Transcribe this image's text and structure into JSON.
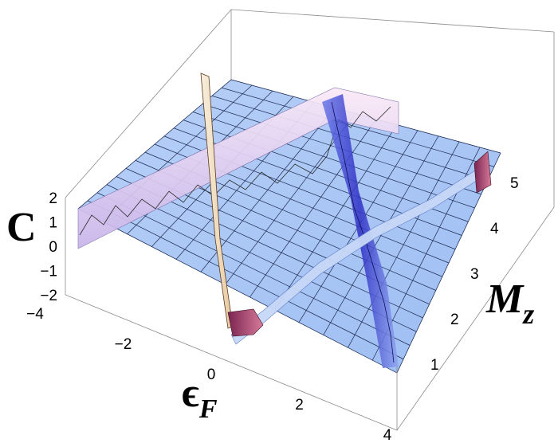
{
  "chart_data": {
    "type": "surface",
    "title": "",
    "xlabel": "ϵ",
    "xlabel_sub": "F",
    "ylabel": "M",
    "ylabel_sub": "z",
    "zlabel": "C",
    "xlim": [
      -4,
      4
    ],
    "ylim": [
      0,
      5
    ],
    "zlim": [
      -2,
      2
    ],
    "x_ticks": [
      "−4",
      "−2",
      "0",
      "2",
      "4"
    ],
    "y_ticks": [
      "1",
      "2",
      "3",
      "4",
      "5"
    ],
    "z_ticks": [
      "2",
      "1",
      "0",
      "−1",
      "−2"
    ],
    "surface": {
      "base_value": 0,
      "features": [
        {
          "name": "ridge",
          "description": "C = +1 plateau along Mz ≈ 4.7 for ϵF from −4 to ≈ 1.5",
          "value": 1
        },
        {
          "name": "valley",
          "description": "C = −1 band along a line from (ϵF ≈ 0, Mz ≈ 0.8) to (ϵF ≈ 4, Mz ≈ 4.8)",
          "value": -1
        },
        {
          "name": "spike",
          "description": "sharp peak near ϵF ≈ −1 along the far edge, C up to ≈ 2",
          "value": 2
        }
      ]
    },
    "grid": true,
    "colors": {
      "surface": "#a9c7f5",
      "ridge": "#f4ddf2",
      "valley": "#3a3ad0",
      "spike": "#f3e7c8",
      "edge": "#b0406a"
    }
  }
}
